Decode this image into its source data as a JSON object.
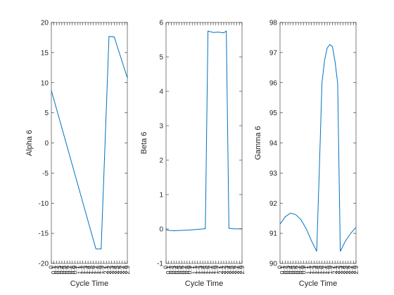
{
  "chart_data": [
    {
      "type": "line",
      "xlabel": "Cycle Time",
      "ylabel": "Alpha 6",
      "xlim": [
        0,
        2.9
      ],
      "ylim": [
        -20,
        20
      ],
      "yticks": [
        -20,
        -15,
        -10,
        -5,
        0,
        5,
        10,
        15,
        20
      ],
      "xtick_labels": [
        "0",
        "0.1",
        "0.2",
        "0.3",
        "0.4",
        "0.5",
        "0.6",
        "0.7",
        "0.8",
        "0.9",
        "1",
        "1.1",
        "1.2",
        "1.3",
        "1.4",
        "1.5",
        "1.6",
        "1.7",
        "1.8",
        "1.9",
        "2",
        "2.1",
        "2.2",
        "2.3",
        "2.4",
        "2.5",
        "2.6",
        "2.7",
        "2.8",
        "2.9"
      ],
      "grid": false,
      "color": "#0072BD",
      "x": [
        0,
        1.7,
        1.9,
        2.2,
        2.4,
        2.9
      ],
      "y": [
        8.7,
        -17.6,
        -17.6,
        17.7,
        17.6,
        10.8
      ]
    },
    {
      "type": "line",
      "xlabel": "Cycle Time",
      "ylabel": "Beta 6",
      "xlim": [
        0,
        2.9
      ],
      "ylim": [
        -1,
        6
      ],
      "yticks": [
        -1,
        0,
        1,
        2,
        3,
        4,
        5,
        6
      ],
      "xtick_labels": [
        "0",
        "0.1",
        "0.2",
        "0.3",
        "0.4",
        "0.5",
        "0.6",
        "0.7",
        "0.8",
        "0.9",
        "1",
        "1.1",
        "1.2",
        "1.3",
        "1.4",
        "1.5",
        "1.6",
        "1.7",
        "1.8",
        "1.9",
        "2",
        "2.1",
        "2.2",
        "2.3",
        "2.4",
        "2.5",
        "2.6",
        "2.7",
        "2.8",
        "2.9"
      ],
      "grid": false,
      "color": "#0072BD",
      "x": [
        0,
        0.1,
        0.3,
        0.6,
        0.9,
        1.2,
        1.4,
        1.5,
        1.6,
        1.8,
        2.0,
        2.2,
        2.3,
        2.4,
        2.5,
        2.7,
        2.9
      ],
      "y": [
        -0.02,
        -0.04,
        -0.05,
        -0.04,
        -0.03,
        -0.01,
        0.0,
        0.01,
        5.75,
        5.71,
        5.72,
        5.7,
        5.75,
        0.02,
        0.01,
        0.0,
        0.01
      ]
    },
    {
      "type": "line",
      "xlabel": "Cycle Time",
      "ylabel": "Gamma 6",
      "xlim": [
        0,
        2.9
      ],
      "ylim": [
        90,
        98
      ],
      "yticks": [
        90,
        91,
        92,
        93,
        94,
        95,
        96,
        97,
        98
      ],
      "xtick_labels": [
        "0",
        "0.1",
        "0.2",
        "0.3",
        "0.4",
        "0.5",
        "0.6",
        "0.7",
        "0.8",
        "0.9",
        "1",
        "1.1",
        "1.2",
        "1.3",
        "1.4",
        "1.5",
        "1.6",
        "1.7",
        "1.8",
        "1.9",
        "2",
        "2.1",
        "2.2",
        "2.3",
        "2.4",
        "2.5",
        "2.6",
        "2.7",
        "2.8",
        "2.9"
      ],
      "grid": false,
      "color": "#0072BD",
      "x": [
        0,
        0.2,
        0.4,
        0.6,
        0.8,
        1.0,
        1.2,
        1.4,
        1.5,
        1.6,
        1.7,
        1.8,
        1.9,
        2.0,
        2.1,
        2.2,
        2.3,
        2.5,
        2.7,
        2.9
      ],
      "y": [
        91.3,
        91.55,
        91.67,
        91.62,
        91.45,
        91.15,
        90.75,
        90.4,
        93.1,
        95.98,
        96.75,
        97.15,
        97.27,
        97.2,
        96.7,
        95.98,
        90.4,
        90.75,
        91.0,
        91.2
      ]
    }
  ]
}
